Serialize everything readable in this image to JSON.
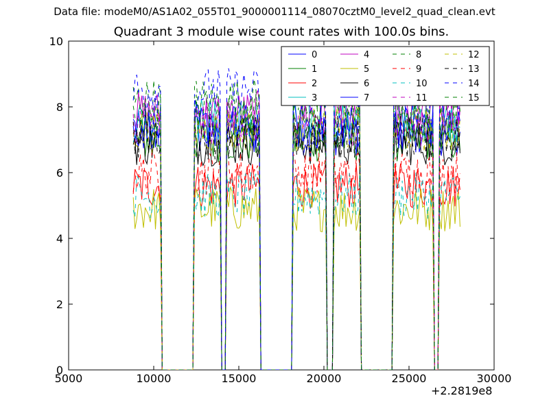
{
  "file_label": "Data file: modeM0/AS1A02_055T01_9000001114_08070cztM0_level2_quad_clean.evt",
  "chart_data": {
    "type": "line",
    "title": "Quadrant 3 module wise count rates with 100.0s bins.",
    "xlabel": "",
    "ylabel": "",
    "x_offset_label": "+2.2819e8",
    "xlim": [
      5000,
      30000
    ],
    "ylim": [
      0,
      10
    ],
    "xticks": [
      5000,
      10000,
      15000,
      20000,
      25000,
      30000
    ],
    "yticks": [
      0,
      2,
      4,
      6,
      8,
      10
    ],
    "grid": false,
    "legend_position": "top-right",
    "active_segments": [
      [
        8800,
        10400
      ],
      [
        12400,
        13900
      ],
      [
        14300,
        16200
      ],
      [
        18200,
        20100
      ],
      [
        20600,
        22100
      ],
      [
        24100,
        26400
      ],
      [
        26800,
        28000
      ]
    ],
    "series": [
      {
        "name": "0",
        "color": "#0000ff",
        "style": "solid",
        "level": 7.2
      },
      {
        "name": "1",
        "color": "#008000",
        "style": "solid",
        "level": 7.0
      },
      {
        "name": "2",
        "color": "#ff0000",
        "style": "solid",
        "level": 5.6
      },
      {
        "name": "3",
        "color": "#00bfbf",
        "style": "solid",
        "level": 7.6
      },
      {
        "name": "4",
        "color": "#bf00bf",
        "style": "solid",
        "level": 7.8
      },
      {
        "name": "5",
        "color": "#bfbf00",
        "style": "solid",
        "level": 4.9
      },
      {
        "name": "6",
        "color": "#000000",
        "style": "solid",
        "level": 6.9
      },
      {
        "name": "7",
        "color": "#0000ff",
        "style": "solid",
        "level": 7.4
      },
      {
        "name": "8",
        "color": "#008000",
        "style": "dashed",
        "level": 8.2
      },
      {
        "name": "9",
        "color": "#ff0000",
        "style": "dashed",
        "level": 6.0
      },
      {
        "name": "10",
        "color": "#00bfbf",
        "style": "dashed",
        "level": 5.3
      },
      {
        "name": "11",
        "color": "#bf00bf",
        "style": "dashed",
        "level": 7.5
      },
      {
        "name": "12",
        "color": "#bfbf00",
        "style": "dashed",
        "level": 7.3
      },
      {
        "name": "13",
        "color": "#000000",
        "style": "dashed",
        "level": 7.1
      },
      {
        "name": "14",
        "color": "#0000ff",
        "style": "dashed",
        "level": 8.5
      },
      {
        "name": "15",
        "color": "#008000",
        "style": "dashed",
        "level": 7.7
      }
    ]
  }
}
